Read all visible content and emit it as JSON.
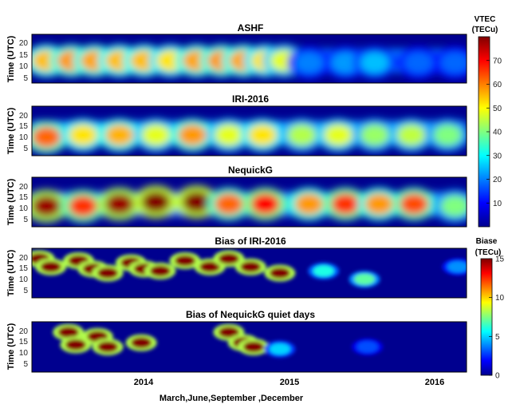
{
  "chart_data": {
    "type": "heatmap",
    "xlabel": "March,June,September ,December",
    "x_ticks": [
      "2014",
      "2015",
      "2016"
    ],
    "x_range": [
      "2013-03",
      "2016-03"
    ],
    "y_ticks": [
      5,
      10,
      15,
      20
    ],
    "y_range": [
      0,
      24
    ],
    "colormap": "jet",
    "panels": [
      {
        "title": "ASHF",
        "ylabel": "Time (UTC)",
        "colorbar": "vtec",
        "blobs": [
          {
            "x": 2013.3,
            "y": 11,
            "v": 55
          },
          {
            "x": 2013.47,
            "y": 11,
            "v": 58
          },
          {
            "x": 2013.63,
            "y": 11,
            "v": 57
          },
          {
            "x": 2013.8,
            "y": 11,
            "v": 55
          },
          {
            "x": 2013.97,
            "y": 11,
            "v": 55
          },
          {
            "x": 2014.15,
            "y": 11,
            "v": 52
          },
          {
            "x": 2014.33,
            "y": 11,
            "v": 57
          },
          {
            "x": 2014.5,
            "y": 11,
            "v": 58
          },
          {
            "x": 2014.65,
            "y": 11,
            "v": 57
          },
          {
            "x": 2014.8,
            "y": 11,
            "v": 52
          },
          {
            "x": 2014.93,
            "y": 11,
            "v": 48
          },
          {
            "x": 2015.1,
            "y": 10,
            "v": 20
          },
          {
            "x": 2015.35,
            "y": 10,
            "v": 22
          },
          {
            "x": 2015.55,
            "y": 10,
            "v": 25
          },
          {
            "x": 2015.85,
            "y": 10,
            "v": 18
          },
          {
            "x": 2016.1,
            "y": 10,
            "v": 18
          }
        ]
      },
      {
        "title": "IRI-2016",
        "ylabel": "Time (UTC)",
        "colorbar": "vtec",
        "blobs": [
          {
            "x": 2013.3,
            "y": 9,
            "v": 62
          },
          {
            "x": 2013.55,
            "y": 10,
            "v": 52
          },
          {
            "x": 2013.8,
            "y": 10,
            "v": 56
          },
          {
            "x": 2014.05,
            "y": 10,
            "v": 48
          },
          {
            "x": 2014.3,
            "y": 10,
            "v": 58
          },
          {
            "x": 2014.55,
            "y": 10,
            "v": 48
          },
          {
            "x": 2014.78,
            "y": 10,
            "v": 52
          },
          {
            "x": 2015.05,
            "y": 10,
            "v": 44
          },
          {
            "x": 2015.3,
            "y": 10,
            "v": 48
          },
          {
            "x": 2015.55,
            "y": 10,
            "v": 42
          },
          {
            "x": 2015.8,
            "y": 10,
            "v": 45
          },
          {
            "x": 2016.05,
            "y": 10,
            "v": 40
          }
        ]
      },
      {
        "title": "NequickG",
        "ylabel": "Time (UTC)",
        "colorbar": "vtec",
        "blobs": [
          {
            "x": 2013.3,
            "y": 10,
            "v": 78
          },
          {
            "x": 2013.55,
            "y": 10,
            "v": 66
          },
          {
            "x": 2013.8,
            "y": 11,
            "v": 78
          },
          {
            "x": 2014.05,
            "y": 12,
            "v": 82
          },
          {
            "x": 2014.33,
            "y": 12,
            "v": 82
          },
          {
            "x": 2014.55,
            "y": 11,
            "v": 62
          },
          {
            "x": 2014.8,
            "y": 11,
            "v": 70
          },
          {
            "x": 2015.1,
            "y": 11,
            "v": 58
          },
          {
            "x": 2015.35,
            "y": 11,
            "v": 66
          },
          {
            "x": 2015.58,
            "y": 11,
            "v": 58
          },
          {
            "x": 2015.82,
            "y": 11,
            "v": 64
          },
          {
            "x": 2016.1,
            "y": 10,
            "v": 40
          }
        ]
      },
      {
        "title": "Bias of IRI-2016",
        "ylabel": "Time (UTC)",
        "colorbar": "bias",
        "blobs": [
          {
            "x": 2013.25,
            "y": 19,
            "v": 15
          },
          {
            "x": 2013.33,
            "y": 15,
            "v": 15
          },
          {
            "x": 2013.52,
            "y": 18,
            "v": 15
          },
          {
            "x": 2013.62,
            "y": 14,
            "v": 15
          },
          {
            "x": 2013.72,
            "y": 12,
            "v": 15
          },
          {
            "x": 2013.88,
            "y": 17,
            "v": 15
          },
          {
            "x": 2013.97,
            "y": 14,
            "v": 15
          },
          {
            "x": 2014.08,
            "y": 13,
            "v": 15
          },
          {
            "x": 2014.25,
            "y": 18,
            "v": 15
          },
          {
            "x": 2014.42,
            "y": 15,
            "v": 15
          },
          {
            "x": 2014.55,
            "y": 19,
            "v": 15
          },
          {
            "x": 2014.7,
            "y": 15,
            "v": 15
          },
          {
            "x": 2014.9,
            "y": 12,
            "v": 15
          },
          {
            "x": 2015.2,
            "y": 13,
            "v": 6
          },
          {
            "x": 2015.48,
            "y": 9,
            "v": 7
          },
          {
            "x": 2016.12,
            "y": 15,
            "v": 4
          }
        ]
      },
      {
        "title": "Bias of NequickG quiet days",
        "ylabel": "Time (UTC)",
        "colorbar": "bias",
        "blobs": [
          {
            "x": 2013.45,
            "y": 19,
            "v": 15
          },
          {
            "x": 2013.5,
            "y": 13,
            "v": 15
          },
          {
            "x": 2013.65,
            "y": 17,
            "v": 15
          },
          {
            "x": 2013.72,
            "y": 12,
            "v": 15
          },
          {
            "x": 2013.95,
            "y": 14,
            "v": 15
          },
          {
            "x": 2014.55,
            "y": 19,
            "v": 15
          },
          {
            "x": 2014.65,
            "y": 14,
            "v": 15
          },
          {
            "x": 2014.72,
            "y": 12,
            "v": 15
          },
          {
            "x": 2014.9,
            "y": 11,
            "v": 5
          },
          {
            "x": 2015.5,
            "y": 12,
            "v": 3
          }
        ]
      }
    ],
    "colorbars": {
      "vtec": {
        "title": [
          "VTEC",
          "(TECu)"
        ],
        "ticks": [
          10,
          20,
          30,
          40,
          50,
          60,
          70
        ],
        "range": [
          0,
          80
        ]
      },
      "bias": {
        "title": [
          "Biase",
          "(TECu)"
        ],
        "ticks": [
          0,
          5,
          10,
          15
        ],
        "range": [
          0,
          15
        ]
      }
    }
  }
}
